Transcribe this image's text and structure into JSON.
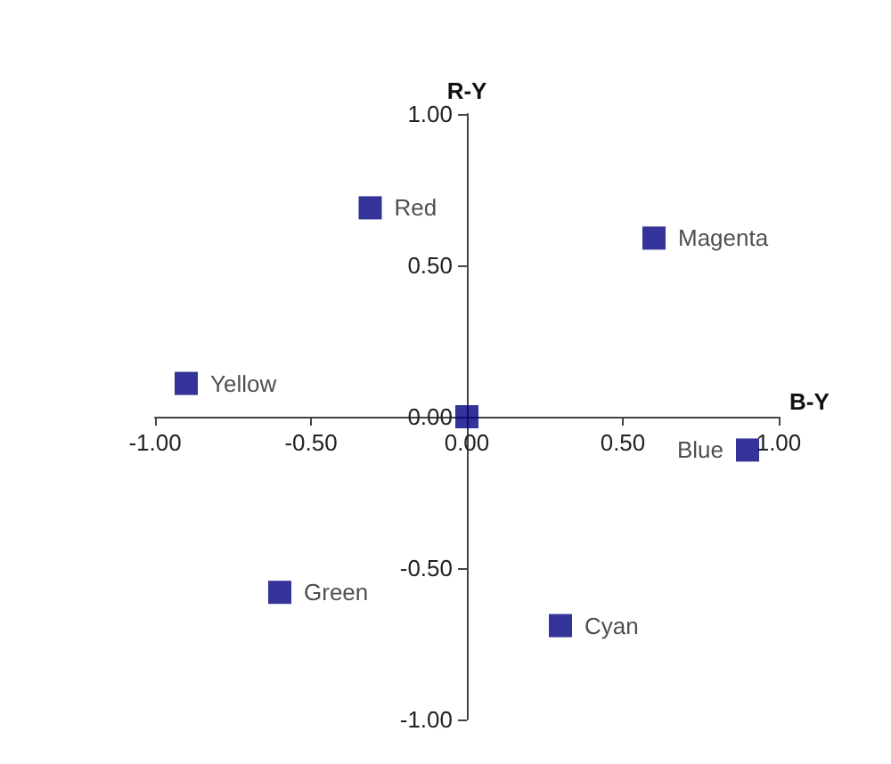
{
  "chart_data": {
    "type": "scatter",
    "xlabel": "B-Y",
    "ylabel": "R-Y",
    "xlim": [
      -1,
      1
    ],
    "ylim": [
      -1,
      1
    ],
    "xticks": [
      {
        "value": -1,
        "label": "-1.00"
      },
      {
        "value": -0.5,
        "label": "-0.50"
      },
      {
        "value": 0,
        "label": "0.00"
      },
      {
        "value": 0.5,
        "label": "0.50"
      },
      {
        "value": 1,
        "label": "1.00"
      }
    ],
    "yticks": [
      {
        "value": -1,
        "label": "-1.00"
      },
      {
        "value": -0.5,
        "label": "-0.50"
      },
      {
        "value": 0,
        "label": "0.00"
      },
      {
        "value": 0.5,
        "label": "0.50"
      },
      {
        "value": 1,
        "label": "1.00"
      }
    ],
    "series": [
      {
        "name": "Red",
        "color": "#000080",
        "x": [
          -0.31
        ],
        "values": [
          0.69
        ]
      },
      {
        "name": "Magenta",
        "color": "#000080",
        "x": [
          0.6
        ],
        "values": [
          0.59
        ]
      },
      {
        "name": "Yellow",
        "color": "#000080",
        "x": [
          -0.9
        ],
        "values": [
          0.11
        ]
      },
      {
        "color": "#000080",
        "x": [
          0
        ],
        "values": [
          0
        ]
      },
      {
        "name": "Blue",
        "color": "#000080",
        "x": [
          0.9
        ],
        "values": [
          -0.11
        ]
      },
      {
        "name": "Green",
        "color": "#000080",
        "x": [
          -0.6
        ],
        "values": [
          -0.58
        ]
      },
      {
        "name": "Cyan",
        "color": "#000080",
        "x": [
          0.3
        ],
        "values": [
          -0.69
        ]
      }
    ],
    "marker": "square",
    "grid": false,
    "legend": false
  }
}
